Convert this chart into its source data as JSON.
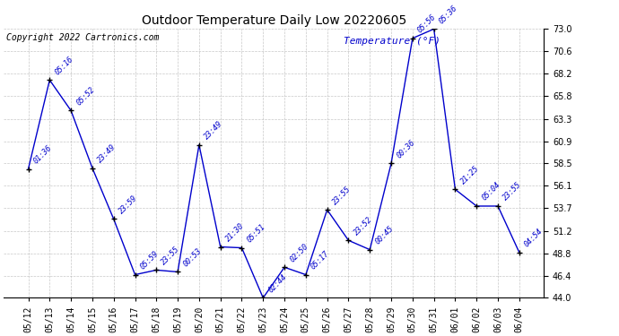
{
  "title": "Outdoor Temperature Daily Low 20220605",
  "copyright": "Copyright 2022 Cartronics.com",
  "legend_label": "Temperature (°F)",
  "background_color": "#ffffff",
  "line_color": "#0000cc",
  "marker_color": "#000000",
  "label_color": "#0000cc",
  "grid_color": "#b0b0b0",
  "ylim": [
    44.0,
    73.0
  ],
  "yticks": [
    44.0,
    46.4,
    48.8,
    51.2,
    53.7,
    56.1,
    58.5,
    60.9,
    63.3,
    65.8,
    68.2,
    70.6,
    73.0
  ],
  "dates": [
    "05/12",
    "05/13",
    "05/14",
    "05/15",
    "05/16",
    "05/17",
    "05/18",
    "05/19",
    "05/20",
    "05/21",
    "05/22",
    "05/23",
    "05/24",
    "05/25",
    "05/26",
    "05/27",
    "05/28",
    "05/29",
    "05/30",
    "05/31",
    "06/01",
    "06/02",
    "06/03",
    "06/04"
  ],
  "values": [
    57.9,
    67.5,
    64.2,
    58.0,
    52.5,
    46.5,
    47.0,
    46.8,
    60.5,
    49.5,
    49.4,
    44.0,
    47.3,
    46.5,
    53.5,
    50.2,
    49.2,
    58.5,
    72.0,
    73.0,
    55.7,
    53.9,
    53.9,
    48.9
  ],
  "point_labels": [
    "01:36",
    "05:16",
    "05:52",
    "23:49",
    "23:59",
    "05:59",
    "23:55",
    "00:53",
    "23:49",
    "21:30",
    "05:51",
    "02:44",
    "02:50",
    "05:17",
    "23:55",
    "23:52",
    "00:45",
    "00:36",
    "05:56",
    "05:36",
    "21:25",
    "05:04",
    "23:55",
    "04:54"
  ],
  "title_fontsize": 10,
  "copyright_fontsize": 7,
  "label_fontsize": 6,
  "tick_fontsize": 7,
  "ytick_fontsize": 7,
  "legend_fontsize": 8
}
